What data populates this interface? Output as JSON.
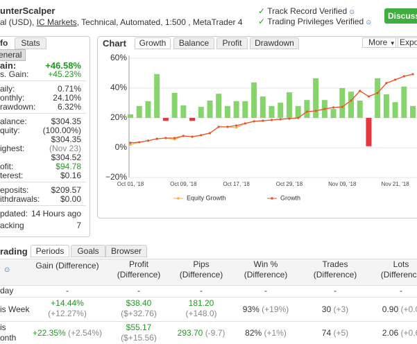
{
  "header": {
    "title": "unterScalper",
    "subtitle": [
      "al (USD), ",
      "IC Markets",
      ", Technical, Automated, 1:500 , MetaTrader 4"
    ],
    "badges": [
      "Track Record Verified",
      "Trading Privileges Verified"
    ],
    "button": "Discuss"
  },
  "info": {
    "tabs": [
      "fo",
      "Stats"
    ],
    "subtab": "eneral",
    "groups": [
      [
        {
          "label": "ain:",
          "values": [
            "+46.58%"
          ]
        },
        {
          "label": "s. Gain:",
          "values": [
            "+45.23%"
          ]
        }
      ],
      [
        {
          "label": "aily:",
          "values": [
            "0.71%"
          ]
        },
        {
          "label": "onthly:",
          "values": [
            "24.10%"
          ]
        },
        {
          "label": "rawdown:",
          "values": [
            "6.32%"
          ]
        }
      ],
      [
        {
          "label": "alance:",
          "values": [
            "$304.35"
          ]
        },
        {
          "label": "quity:",
          "values": [
            "(100.00%)",
            "$304.35"
          ]
        },
        {
          "label": "ighest:",
          "values": [
            "(Nov 23)",
            "$304.52"
          ]
        },
        {
          "label": "ofit:",
          "values": [
            "$94.78"
          ]
        },
        {
          "label": "terest:",
          "values": [
            "$0.16"
          ]
        }
      ],
      [
        {
          "label": "eposits:",
          "values": [
            "$209.57"
          ]
        },
        {
          "label": "ithdrawals:",
          "values": [
            "$0.00"
          ]
        }
      ],
      [
        {
          "label": "pdated:",
          "values": [
            "14 Hours ago"
          ]
        },
        {
          "label": "acking",
          "values": [
            "7"
          ]
        }
      ]
    ]
  },
  "chart_panel": {
    "heading": "Chart",
    "tabs": [
      "Growth",
      "Balance",
      "Profit",
      "Drawdown"
    ],
    "more": "More",
    "export": "Expo"
  },
  "chart_data": {
    "type": "bar_line",
    "categories": [
      "Oct 01, '18",
      null,
      null,
      null,
      null,
      null,
      "Oct 09, '18",
      null,
      null,
      null,
      null,
      null,
      "Oct 17, '18",
      null,
      null,
      null,
      null,
      null,
      "Oct 29, '18",
      null,
      null,
      null,
      null,
      null,
      "Nov 09, '18",
      null,
      null,
      null,
      null,
      null,
      "Nov 21, '18",
      null,
      null
    ],
    "ylim": [
      -20,
      60
    ],
    "yticks": [
      {
        "value": 60,
        "label": "60%"
      },
      {
        "value": 40,
        "label": "40%"
      },
      {
        "value": 20,
        "label": "20%"
      },
      {
        "value": 0,
        "label": "0%"
      },
      {
        "value": -20,
        "label": "−20%"
      }
    ],
    "y2lim": [
      -2,
      2
    ],
    "grid": true,
    "bars": {
      "axis": "y2",
      "color": "#86d46c",
      "negative_color": "#e4383c",
      "values": [
        0.12,
        0.4,
        0.56,
        1.47,
        -0.1,
        0.84,
        0.42,
        -0.1,
        0.37,
        0.58,
        0.81,
        0.4,
        0.56,
        0.56,
        1.19,
        0.72,
        0.4,
        0.51,
        0.86,
        0.4,
        0.6,
        1.33,
        0.6,
        0.3,
        1.0,
        0.88,
        0.58,
        -0.95,
        1.33,
        0.79,
        0.53,
        1.05,
        0.4
      ]
    },
    "series": [
      {
        "name": "Equity Growth",
        "color": "#f2b43c",
        "values": [
          2.0,
          3.7,
          4.7,
          6.0,
          6.5,
          5.6,
          7.9,
          7.4,
          8.4,
          9.8,
          14.0,
          14.0,
          13.5,
          16.3,
          17.7,
          18.1,
          18.6,
          19.1,
          19.5,
          20.0,
          24.2,
          24.7,
          26.0,
          27.0,
          27.4,
          31.6,
          38.1,
          34.4,
          36.7,
          43.3,
          45.6,
          47.9,
          49.3
        ]
      },
      {
        "name": "Growth",
        "color": "#e5552f",
        "values": [
          3.3,
          3.7,
          4.7,
          6.0,
          6.5,
          6.5,
          7.9,
          7.4,
          8.4,
          9.8,
          14.0,
          14.0,
          14.9,
          16.3,
          17.7,
          18.1,
          18.6,
          19.1,
          19.5,
          20.0,
          24.2,
          24.7,
          26.0,
          27.0,
          27.4,
          31.6,
          38.1,
          34.4,
          36.7,
          43.3,
          45.6,
          47.9,
          49.3
        ]
      }
    ]
  },
  "periods": {
    "tabs": [
      "rading",
      "Periods",
      "Goals",
      "Browser"
    ],
    "columns": [
      [],
      [
        "Gain (Difference)"
      ],
      [
        "Profit",
        "(Difference)"
      ],
      [
        "Pips",
        "(Difference)"
      ],
      [
        "Win %",
        "(Difference)"
      ],
      [
        "Trades",
        "(Difference)"
      ],
      [
        "Lots",
        "(Difference"
      ]
    ],
    "rows": [
      {
        "label": [
          "day"
        ],
        "cells": [
          {
            "main": "-"
          },
          {
            "main": "-"
          },
          {
            "main": "-"
          },
          {
            "main": "-"
          },
          {
            "main": "-"
          },
          {
            "main": "-"
          }
        ]
      },
      {
        "label": [
          "is Week"
        ],
        "cells": [
          {
            "main": "+14.44%",
            "diff": "(+12.27%)"
          },
          {
            "main": "$38.40",
            "diff": "($+32.76)"
          },
          {
            "main": "181.20",
            "diff": "(+148.0)"
          },
          {
            "main": "93%",
            "diff": "(+19%)"
          },
          {
            "main": "30",
            "diff": "(+3)"
          },
          {
            "main": "0.90",
            "diff": "(+0.0"
          }
        ]
      },
      {
        "label": [
          "is",
          "onth"
        ],
        "cells": [
          {
            "main": "+22.35%",
            "diff": "(+2.54%)"
          },
          {
            "main": "$55.17",
            "diff": "($+15.56)"
          },
          {
            "main": "293.70",
            "diff": "(-9.7)"
          },
          {
            "main": "82%",
            "diff": "(+1%)"
          },
          {
            "main": "74",
            "diff": "(+5)"
          },
          {
            "main": "2.06",
            "diff": "(+0.6"
          }
        ]
      }
    ]
  }
}
